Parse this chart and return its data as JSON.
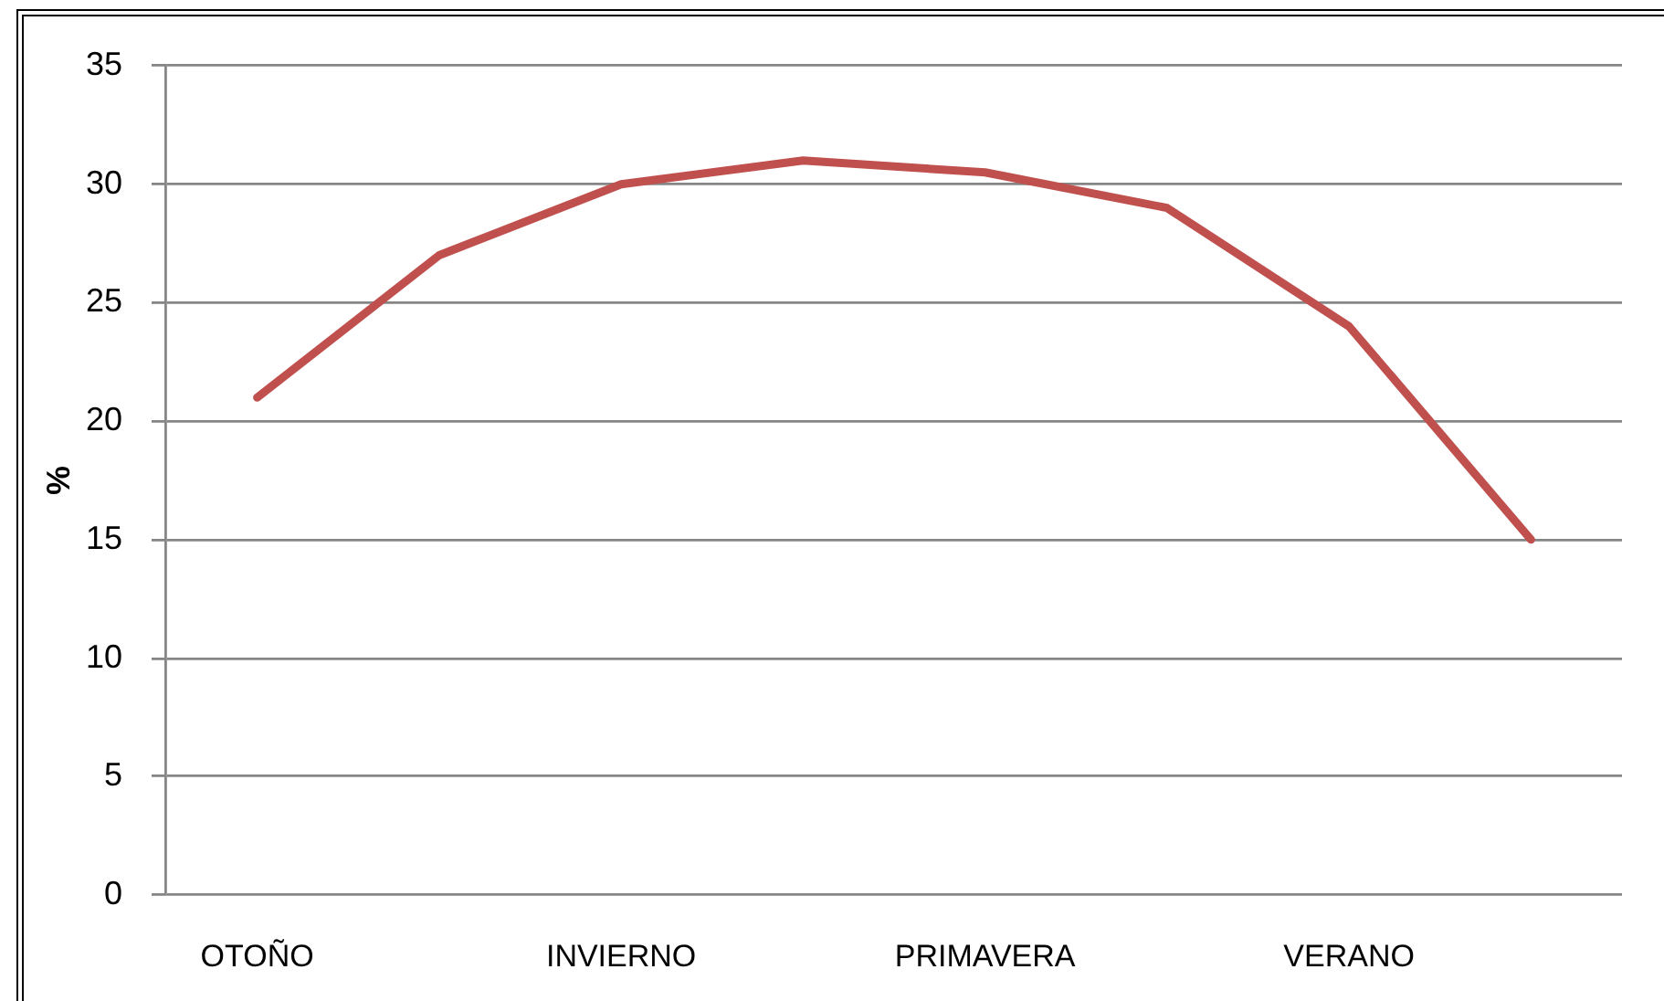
{
  "chart_data": {
    "type": "line",
    "ylabel": "%",
    "categories": [
      "OTOÑO",
      null,
      "INVIERNO",
      null,
      "PRIMAVERA",
      null,
      "VERANO",
      null
    ],
    "series": [
      {
        "color": "#c0504d",
        "values": [
          21,
          27,
          30,
          31,
          30.5,
          29,
          24,
          15
        ]
      }
    ],
    "ylim": [
      0,
      35
    ],
    "yticks": [
      0,
      5,
      10,
      15,
      20,
      25,
      30,
      35
    ],
    "grid": "y"
  }
}
